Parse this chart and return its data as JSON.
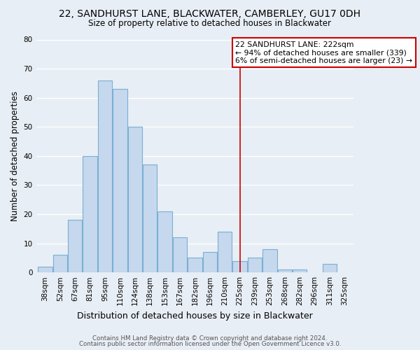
{
  "title": "22, SANDHURST LANE, BLACKWATER, CAMBERLEY, GU17 0DH",
  "subtitle": "Size of property relative to detached houses in Blackwater",
  "xlabel": "Distribution of detached houses by size in Blackwater",
  "ylabel": "Number of detached properties",
  "bar_labels": [
    "38sqm",
    "52sqm",
    "67sqm",
    "81sqm",
    "95sqm",
    "110sqm",
    "124sqm",
    "138sqm",
    "153sqm",
    "167sqm",
    "182sqm",
    "196sqm",
    "210sqm",
    "225sqm",
    "239sqm",
    "253sqm",
    "268sqm",
    "282sqm",
    "296sqm",
    "311sqm",
    "325sqm"
  ],
  "bar_values": [
    2,
    6,
    18,
    40,
    66,
    63,
    50,
    37,
    21,
    12,
    5,
    7,
    14,
    4,
    5,
    8,
    1,
    1,
    0,
    3,
    0
  ],
  "bar_color": "#c5d8ed",
  "bar_edge_color": "#7aafd4",
  "vline_x_index": 13,
  "vline_color": "#cc0000",
  "ylim": [
    0,
    80
  ],
  "yticks": [
    0,
    10,
    20,
    30,
    40,
    50,
    60,
    70,
    80
  ],
  "annotation_title": "22 SANDHURST LANE: 222sqm",
  "annotation_line1": "← 94% of detached houses are smaller (339)",
  "annotation_line2": "6% of semi-detached houses are larger (23) →",
  "annotation_box_color": "#ffffff",
  "annotation_box_edge": "#cc0000",
  "footer1": "Contains HM Land Registry data © Crown copyright and database right 2024.",
  "footer2": "Contains public sector information licensed under the Open Government Licence v3.0.",
  "background_color": "#e8eef5",
  "grid_color": "#ffffff",
  "title_fontsize": 10,
  "subtitle_fontsize": 8.5,
  "tick_fontsize": 7.5,
  "ylabel_fontsize": 8.5,
  "xlabel_fontsize": 9
}
